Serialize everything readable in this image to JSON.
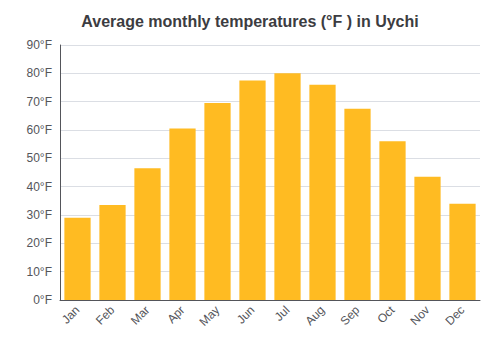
{
  "chart_data": {
    "type": "bar",
    "title": "Average monthly temperatures (°F ) in Uychi",
    "categories": [
      "Jan",
      "Feb",
      "Mar",
      "Apr",
      "May",
      "Jun",
      "Jul",
      "Aug",
      "Sep",
      "Oct",
      "Nov",
      "Dec"
    ],
    "values": [
      29,
      33.5,
      46.5,
      60.5,
      69.5,
      77.5,
      80,
      76,
      67.5,
      56,
      43.5,
      34
    ],
    "color": "#FFBB22",
    "ylim": [
      0,
      90
    ],
    "yticks": [
      {
        "value": 0,
        "label": "0°F"
      },
      {
        "value": 10,
        "label": "10°F"
      },
      {
        "value": 20,
        "label": "20°F"
      },
      {
        "value": 30,
        "label": "30°F"
      },
      {
        "value": 40,
        "label": "40°F"
      },
      {
        "value": 50,
        "label": "50°F"
      },
      {
        "value": 60,
        "label": "60°F"
      },
      {
        "value": 70,
        "label": "70°F"
      },
      {
        "value": 80,
        "label": "80°F"
      },
      {
        "value": 90,
        "label": "90°F"
      }
    ],
    "grid": true
  }
}
